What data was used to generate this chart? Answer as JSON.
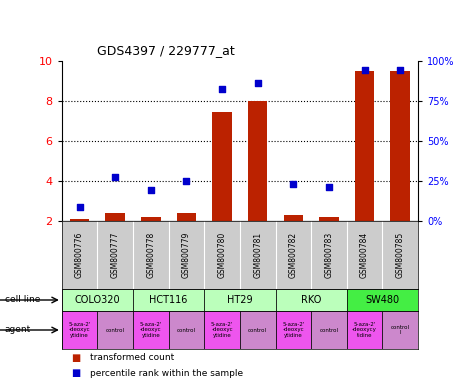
{
  "title": "GDS4397 / 229777_at",
  "samples": [
    "GSM800776",
    "GSM800777",
    "GSM800778",
    "GSM800779",
    "GSM800780",
    "GSM800781",
    "GSM800782",
    "GSM800783",
    "GSM800784",
    "GSM800785"
  ],
  "transformed_count": [
    2.1,
    2.4,
    2.2,
    2.4,
    7.45,
    8.0,
    2.3,
    2.2,
    9.5,
    9.5
  ],
  "percentile_rank_left_scale": [
    2.7,
    4.2,
    3.55,
    4.0,
    8.6,
    8.9,
    3.85,
    3.7,
    9.55,
    9.55
  ],
  "cell_groups": [
    {
      "label": "COLO320",
      "start": 0,
      "end": 1,
      "color": "#bbffbb"
    },
    {
      "label": "HCT116",
      "start": 2,
      "end": 3,
      "color": "#bbffbb"
    },
    {
      "label": "HT29",
      "start": 4,
      "end": 5,
      "color": "#bbffbb"
    },
    {
      "label": "RKO",
      "start": 6,
      "end": 7,
      "color": "#bbffbb"
    },
    {
      "label": "SW480",
      "start": 8,
      "end": 9,
      "color": "#44ee44"
    }
  ],
  "agent_labels": [
    "5-aza-2'\n-deoxyc\nytidine",
    "control",
    "5-aza-2'\n-deoxyc\nytidine",
    "control",
    "5-aza-2'\n-deoxyc\nytidine",
    "control",
    "5-aza-2'\n-deoxyc\nytidine",
    "control",
    "5-aza-2'\n-deoxycy\ntidine",
    "control\nl"
  ],
  "agent_colors": [
    "#ee55ee",
    "#cc88cc",
    "#ee55ee",
    "#cc88cc",
    "#ee55ee",
    "#cc88cc",
    "#ee55ee",
    "#cc88cc",
    "#ee55ee",
    "#cc88cc"
  ],
  "ylim_left": [
    2,
    10
  ],
  "ylim_right": [
    0,
    100
  ],
  "yticks_left": [
    2,
    4,
    6,
    8,
    10
  ],
  "yticks_right": [
    0,
    25,
    50,
    75,
    100
  ],
  "ytick_labels_right": [
    "0%",
    "25%",
    "50%",
    "75%",
    "100%"
  ],
  "bar_color": "#bb2200",
  "dot_color": "#0000cc",
  "sample_band_color": "#cccccc"
}
